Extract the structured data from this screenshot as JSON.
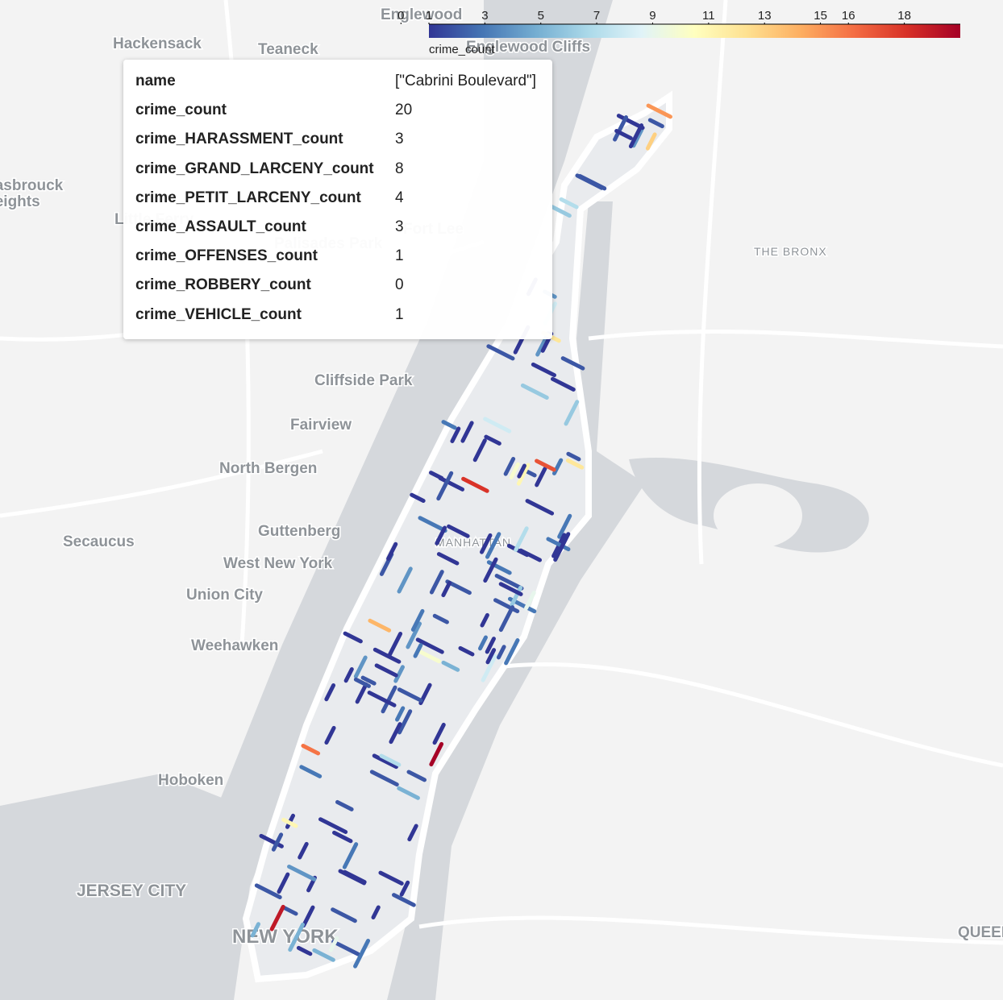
{
  "map": {
    "labels": [
      "Englewood",
      "Hackensack",
      "Teaneck",
      "Englewood Cliffs",
      "Fort Lee",
      "Palisades Park",
      "Little Ferry",
      "THE BRONX",
      "Cliffside Park",
      "Fairview",
      "North Bergen",
      "Guttenberg",
      "West New York",
      "Union City",
      "Weehawken",
      "Secaucus",
      "Hoboken",
      "JERSEY CITY",
      "MANHATTAN",
      "NEW YORK",
      "QUEENS",
      "Hasbrouck",
      "Heights"
    ],
    "segments": [
      1,
      2,
      1,
      3,
      1,
      4,
      2,
      1,
      8,
      1,
      2,
      3,
      1,
      5,
      2,
      1,
      12,
      1,
      3,
      2,
      1,
      6,
      1,
      2,
      15,
      1,
      1,
      4,
      2,
      9,
      1,
      3,
      1,
      2,
      18,
      1,
      2,
      1,
      7,
      3,
      1,
      2,
      5,
      1,
      1,
      11,
      2,
      1,
      3,
      1,
      4,
      1,
      2,
      14,
      1,
      3,
      1,
      2,
      6,
      1,
      1,
      2,
      10,
      1,
      3,
      1,
      2,
      1,
      17,
      2,
      1,
      4,
      1,
      2,
      8,
      1,
      3,
      1,
      2,
      1,
      5,
      13,
      1,
      2,
      1,
      3,
      1,
      7,
      2,
      1,
      1,
      4,
      2,
      20,
      1,
      3,
      1,
      2,
      9,
      1,
      1,
      2,
      6,
      1,
      3,
      1,
      16,
      2,
      1,
      4,
      1,
      2,
      1,
      11,
      3,
      1,
      2,
      1,
      5,
      1,
      2,
      8,
      1,
      3,
      1,
      1,
      12,
      2,
      1,
      4,
      1,
      2,
      7,
      1,
      3,
      1,
      19,
      2,
      1,
      5,
      1,
      2,
      1,
      10,
      3,
      1,
      2,
      4,
      1,
      6
    ]
  },
  "colorbar": {
    "title": "crime_count",
    "ticks": [
      0,
      1,
      3,
      5,
      7,
      9,
      11,
      13,
      15,
      16,
      18
    ],
    "clim": [
      1,
      20
    ],
    "colorscale": [
      "#313695",
      "#4575b4",
      "#74add1",
      "#abd9e9",
      "#e0f3f8",
      "#ffffbf",
      "#fee090",
      "#fdae61",
      "#f46d43",
      "#d73027",
      "#a50026"
    ]
  },
  "tooltip": {
    "rows": [
      [
        "name",
        "[\"Cabrini Boulevard\"]"
      ],
      [
        "crime_count",
        20
      ],
      [
        "crime_HARASSMENT_count",
        3
      ],
      [
        "crime_GRAND_LARCENY_count",
        8
      ],
      [
        "crime_PETIT_LARCENY_count",
        4
      ],
      [
        "crime_ASSAULT_count",
        3
      ],
      [
        "crime_OFFENSES_count",
        1
      ],
      [
        "crime_ROBBERY_count",
        0
      ],
      [
        "crime_VEHICLE_count",
        1
      ]
    ]
  }
}
